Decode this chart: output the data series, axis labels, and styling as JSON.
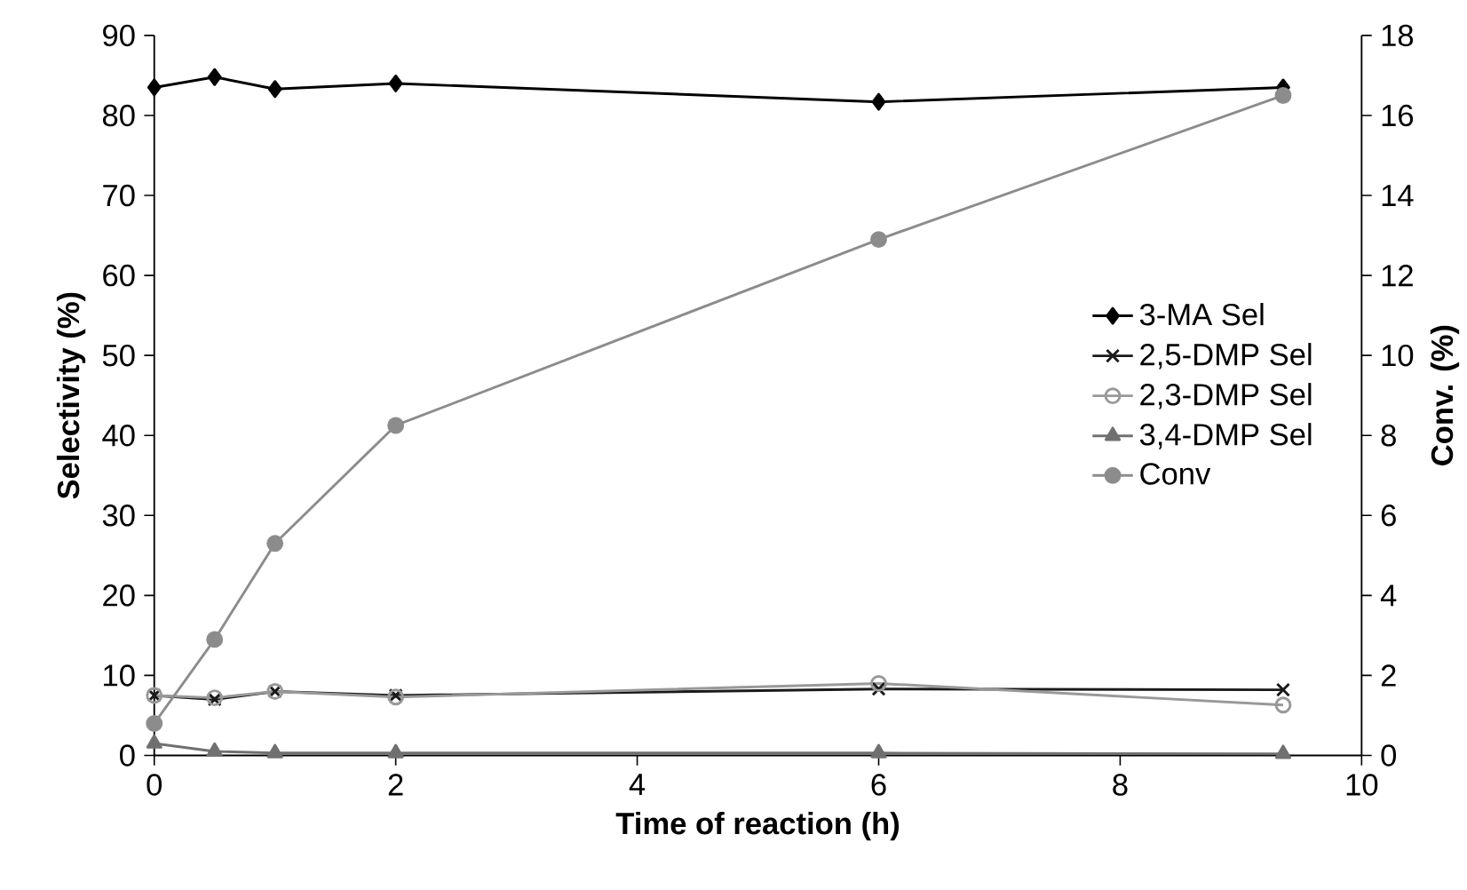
{
  "chart_data": {
    "type": "line",
    "xlabel": "Time of reaction (h)",
    "ylabel": "Selectivity (%)",
    "y2label": "Conv. (%)",
    "x": [
      0,
      0.5,
      1,
      2,
      6,
      9.35
    ],
    "series": [
      {
        "name": "3-MA Sel",
        "color": "#000000",
        "marker": "diamond",
        "values": [
          83.5,
          84.8,
          83.3,
          84,
          81.7,
          83.5
        ]
      },
      {
        "name": "2,5-DMP Sel",
        "color": "#1a1a1a",
        "marker": "cross",
        "values": [
          7.5,
          7,
          8,
          7.5,
          8.3,
          8.2
        ]
      },
      {
        "name": "2,3-DMP Sel",
        "color": "#999999",
        "marker": "circle_open",
        "values": [
          7.5,
          7.2,
          8,
          7.3,
          9,
          6.3
        ]
      },
      {
        "name": "3,4-DMP Sel",
        "color": "#707070",
        "marker": "triangle",
        "values": [
          1.5,
          0.5,
          0.3,
          0.3,
          0.3,
          0.2
        ]
      },
      {
        "name": "Conv",
        "color": "#8c8c8c",
        "marker": "circle",
        "axis": "y2",
        "values": [
          0.8,
          2.9,
          5.3,
          8.25,
          12.9,
          16.5
        ]
      }
    ],
    "xlim": [
      0,
      10
    ],
    "xticks": [
      0,
      2,
      4,
      6,
      8,
      10
    ],
    "ylim": [
      0,
      90
    ],
    "yticks": [
      0,
      10,
      20,
      30,
      40,
      50,
      60,
      70,
      80,
      90
    ],
    "y2lim": [
      0,
      18
    ],
    "y2ticks": [
      0,
      2,
      4,
      6,
      8,
      10,
      12,
      14,
      16,
      18
    ],
    "legend": "right",
    "grid": false
  }
}
